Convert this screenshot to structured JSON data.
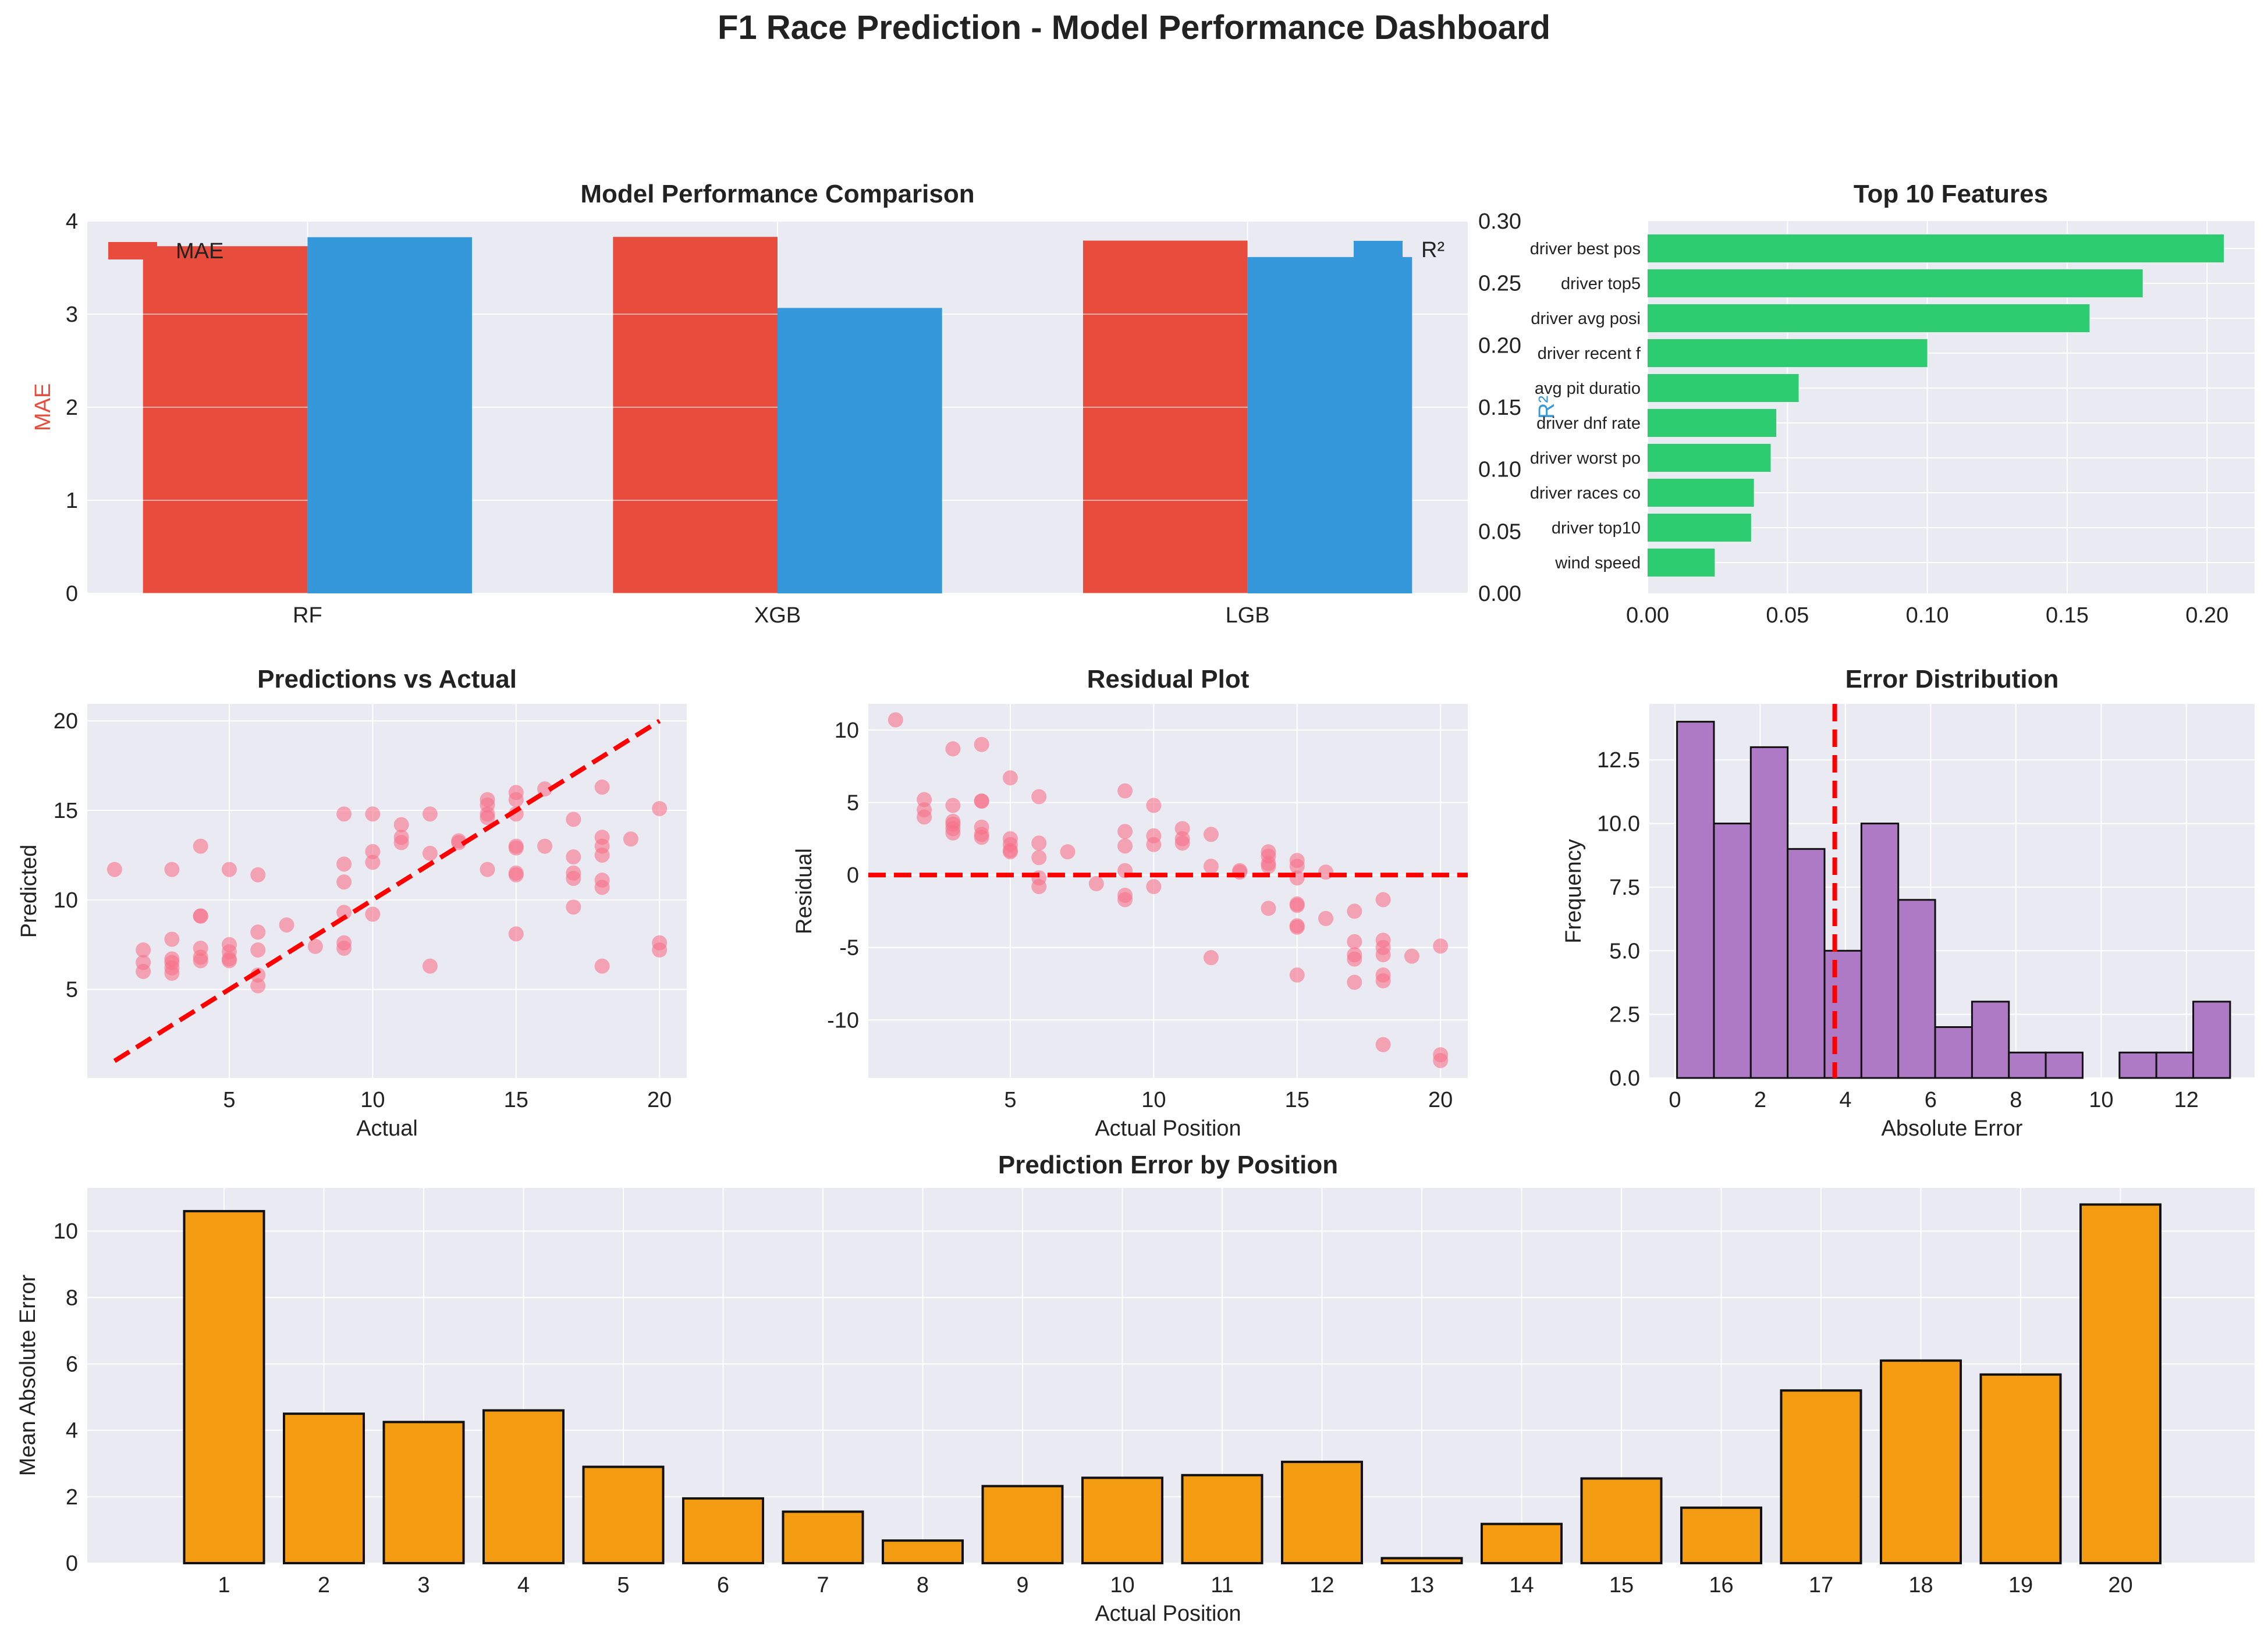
{
  "suptitle": "F1 Race Prediction - Model Performance Dashboard",
  "colors": {
    "mae": "#e74c3c",
    "r2": "#3498db",
    "features": "#2ecc71",
    "scatter": "#f77189",
    "reference": "#ff0000",
    "histogram": "#af7ac5",
    "position_bars": "#f39c12",
    "panel_bg": "#eaeaf2",
    "grid": "#ffffff"
  },
  "chart_data": [
    {
      "id": "model_comparison",
      "type": "bar",
      "title": "Model Performance Comparison",
      "categories": [
        "RF",
        "XGB",
        "LGB"
      ],
      "series": [
        {
          "name": "MAE",
          "axis": "left",
          "values": [
            3.73,
            3.83,
            3.79
          ]
        },
        {
          "name": "R²",
          "axis": "right",
          "values": [
            0.287,
            0.23,
            0.271
          ]
        }
      ],
      "ylabel": "MAE",
      "ylabel_right": "R²",
      "ylim": [
        0,
        4
      ],
      "ylim_right": [
        0,
        0.3
      ],
      "yticks": [
        0,
        1,
        2,
        3,
        4
      ],
      "yticks_right": [
        "0.00",
        "0.05",
        "0.10",
        "0.15",
        "0.20",
        "0.25",
        "0.30"
      ],
      "legend": "top-left (MAE), top-right (R²)",
      "grid": true
    },
    {
      "id": "top_features",
      "type": "bar",
      "orientation": "horizontal",
      "title": "Top 10 Features",
      "categories": [
        "driver best pos",
        "driver top5",
        "driver avg posi",
        "driver recent f",
        "avg pit duratio",
        "driver dnf rate",
        "driver worst po",
        "driver races co",
        "driver top10",
        "wind speed"
      ],
      "values": [
        0.206,
        0.177,
        0.158,
        0.1,
        0.054,
        0.046,
        0.044,
        0.038,
        0.037,
        0.024
      ],
      "xlim": [
        0,
        0.217
      ],
      "xticks": [
        "0.00",
        "0.05",
        "0.10",
        "0.15",
        "0.20"
      ],
      "grid": true
    },
    {
      "id": "pred_vs_actual",
      "type": "scatter",
      "title": "Predictions vs Actual",
      "xlabel": "Actual",
      "ylabel": "Predicted",
      "xlim": [
        0.05,
        20.95
      ],
      "ylim": [
        0.05,
        20.95
      ],
      "xticks": [
        5,
        10,
        15,
        20
      ],
      "yticks": [
        5,
        10,
        15,
        20
      ],
      "reference_line": [
        [
          1,
          1
        ],
        [
          20,
          20
        ]
      ],
      "points": [
        [
          1,
          11.7
        ],
        [
          2,
          7.2
        ],
        [
          2,
          6.5
        ],
        [
          2,
          6.0
        ],
        [
          3,
          11.7
        ],
        [
          3,
          7.8
        ],
        [
          3,
          6.7
        ],
        [
          3,
          6.5
        ],
        [
          3,
          6.2
        ],
        [
          3,
          5.9
        ],
        [
          4,
          13.0
        ],
        [
          4,
          9.1
        ],
        [
          4,
          9.1
        ],
        [
          4,
          7.3
        ],
        [
          4,
          6.8
        ],
        [
          4,
          6.6
        ],
        [
          5,
          11.7
        ],
        [
          5,
          7.5
        ],
        [
          5,
          7.1
        ],
        [
          5,
          6.7
        ],
        [
          5,
          6.6
        ],
        [
          6,
          11.4
        ],
        [
          6,
          8.2
        ],
        [
          6,
          7.2
        ],
        [
          6,
          5.8
        ],
        [
          6,
          5.2
        ],
        [
          7,
          8.6
        ],
        [
          8,
          7.4
        ],
        [
          9,
          14.8
        ],
        [
          9,
          12.0
        ],
        [
          9,
          11.0
        ],
        [
          9,
          9.3
        ],
        [
          9,
          7.6
        ],
        [
          9,
          7.3
        ],
        [
          10,
          14.8
        ],
        [
          10,
          12.7
        ],
        [
          10,
          12.1
        ],
        [
          10,
          9.2
        ],
        [
          11,
          14.2
        ],
        [
          11,
          13.5
        ],
        [
          11,
          13.2
        ],
        [
          12,
          14.8
        ],
        [
          12,
          12.6
        ],
        [
          12,
          6.3
        ],
        [
          13,
          13.3
        ],
        [
          13,
          13.2
        ],
        [
          14,
          15.6
        ],
        [
          14,
          15.3
        ],
        [
          14,
          14.8
        ],
        [
          14,
          14.6
        ],
        [
          14,
          11.7
        ],
        [
          15,
          16.0
        ],
        [
          15,
          15.6
        ],
        [
          15,
          14.8
        ],
        [
          15,
          13.0
        ],
        [
          15,
          12.9
        ],
        [
          15,
          11.5
        ],
        [
          15,
          11.4
        ],
        [
          15,
          8.1
        ],
        [
          16,
          16.2
        ],
        [
          16,
          13.0
        ],
        [
          17,
          14.5
        ],
        [
          17,
          12.4
        ],
        [
          17,
          11.5
        ],
        [
          17,
          11.2
        ],
        [
          17,
          9.6
        ],
        [
          18,
          16.3
        ],
        [
          18,
          13.5
        ],
        [
          18,
          13.0
        ],
        [
          18,
          12.5
        ],
        [
          18,
          11.1
        ],
        [
          18,
          10.7
        ],
        [
          18,
          6.3
        ],
        [
          19,
          13.4
        ],
        [
          20,
          15.1
        ],
        [
          20,
          7.6
        ],
        [
          20,
          7.2
        ]
      ],
      "grid": true
    },
    {
      "id": "residual_plot",
      "type": "scatter",
      "title": "Residual Plot",
      "xlabel": "Actual Position",
      "ylabel": "Residual",
      "xlim": [
        0.05,
        20.95
      ],
      "ylim": [
        -14,
        11.8
      ],
      "xticks": [
        5,
        10,
        15,
        20
      ],
      "yticks": [
        10,
        5,
        0,
        -5,
        -10
      ],
      "reference_line": 0,
      "points": [
        [
          1,
          10.7
        ],
        [
          2,
          5.2
        ],
        [
          2,
          4.5
        ],
        [
          2,
          4.0
        ],
        [
          3,
          8.7
        ],
        [
          3,
          4.8
        ],
        [
          3,
          3.7
        ],
        [
          3,
          3.5
        ],
        [
          3,
          3.2
        ],
        [
          3,
          2.9
        ],
        [
          4,
          9.0
        ],
        [
          4,
          5.1
        ],
        [
          4,
          5.1
        ],
        [
          4,
          3.3
        ],
        [
          4,
          2.8
        ],
        [
          4,
          2.6
        ],
        [
          5,
          6.7
        ],
        [
          5,
          2.5
        ],
        [
          5,
          2.1
        ],
        [
          5,
          1.7
        ],
        [
          5,
          1.6
        ],
        [
          6,
          5.4
        ],
        [
          6,
          2.2
        ],
        [
          6,
          1.2
        ],
        [
          6,
          -0.2
        ],
        [
          6,
          -0.8
        ],
        [
          7,
          1.6
        ],
        [
          8,
          -0.6
        ],
        [
          9,
          5.8
        ],
        [
          9,
          3.0
        ],
        [
          9,
          2.0
        ],
        [
          9,
          0.3
        ],
        [
          9,
          -1.4
        ],
        [
          9,
          -1.7
        ],
        [
          10,
          4.8
        ],
        [
          10,
          2.7
        ],
        [
          10,
          2.1
        ],
        [
          10,
          -0.8
        ],
        [
          11,
          3.2
        ],
        [
          11,
          2.5
        ],
        [
          11,
          2.2
        ],
        [
          12,
          2.8
        ],
        [
          12,
          0.6
        ],
        [
          12,
          -5.7
        ],
        [
          13,
          0.3
        ],
        [
          13,
          0.2
        ],
        [
          14,
          1.6
        ],
        [
          14,
          1.3
        ],
        [
          14,
          0.8
        ],
        [
          14,
          0.6
        ],
        [
          14,
          -2.3
        ],
        [
          15,
          1.0
        ],
        [
          15,
          0.6
        ],
        [
          15,
          -0.2
        ],
        [
          15,
          -2.0
        ],
        [
          15,
          -2.1
        ],
        [
          15,
          -3.5
        ],
        [
          15,
          -3.6
        ],
        [
          15,
          -6.9
        ],
        [
          16,
          0.2
        ],
        [
          16,
          -3.0
        ],
        [
          17,
          -2.5
        ],
        [
          17,
          -4.6
        ],
        [
          17,
          -5.5
        ],
        [
          17,
          -5.8
        ],
        [
          17,
          -7.4
        ],
        [
          18,
          -1.7
        ],
        [
          18,
          -4.5
        ],
        [
          18,
          -5.0
        ],
        [
          18,
          -5.5
        ],
        [
          18,
          -6.9
        ],
        [
          18,
          -7.3
        ],
        [
          18,
          -11.7
        ],
        [
          19,
          -5.6
        ],
        [
          20,
          -4.9
        ],
        [
          20,
          -12.4
        ],
        [
          20,
          -12.8
        ]
      ],
      "grid": true
    },
    {
      "id": "error_distribution",
      "type": "bar",
      "subtype": "histogram",
      "title": "Error Distribution",
      "xlabel": "Absolute Error",
      "ylabel": "Frequency",
      "bin_start": 0.05,
      "bin_width": 0.865,
      "counts": [
        14,
        10,
        13,
        9,
        5,
        10,
        7,
        2,
        3,
        1,
        1,
        0,
        1,
        1,
        3
      ],
      "mean_line": 3.75,
      "xlim": [
        -0.6,
        13.6
      ],
      "ylim": [
        0,
        14.7
      ],
      "xticks": [
        0,
        2,
        4,
        6,
        8,
        10,
        12
      ],
      "yticks": [
        "0.0",
        "2.5",
        "5.0",
        "7.5",
        "10.0",
        "12.5"
      ],
      "grid": true
    },
    {
      "id": "error_by_position",
      "type": "bar",
      "title": "Prediction Error by Position",
      "xlabel": "Actual Position",
      "ylabel": "Mean Absolute Error",
      "categories": [
        "1",
        "2",
        "3",
        "4",
        "5",
        "6",
        "7",
        "8",
        "9",
        "10",
        "11",
        "12",
        "13",
        "14",
        "15",
        "16",
        "17",
        "18",
        "19",
        "20"
      ],
      "values": [
        10.6,
        4.5,
        4.25,
        4.6,
        2.9,
        1.95,
        1.55,
        0.68,
        2.32,
        2.57,
        2.65,
        3.05,
        0.15,
        1.18,
        2.55,
        1.67,
        5.2,
        6.1,
        5.68,
        10.8
      ],
      "ylim": [
        0,
        11.3
      ],
      "yticks": [
        0,
        2,
        4,
        6,
        8,
        10
      ],
      "grid": true
    }
  ]
}
